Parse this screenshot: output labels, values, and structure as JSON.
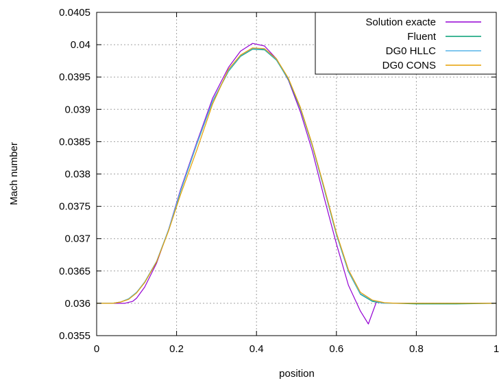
{
  "chart_data": {
    "type": "line",
    "title": "",
    "xlabel": "position",
    "ylabel": "Mach number",
    "xlim": [
      0,
      1
    ],
    "ylim": [
      0.0355,
      0.0405
    ],
    "x_ticks": [
      0,
      0.2,
      0.4,
      0.6,
      0.8,
      1
    ],
    "x_tick_labels": [
      "0",
      "0.2",
      "0.4",
      "0.6",
      "0.8",
      "1"
    ],
    "y_ticks": [
      0.0355,
      0.036,
      0.0365,
      0.037,
      0.0375,
      0.038,
      0.0385,
      0.039,
      0.0395,
      0.04,
      0.0405
    ],
    "y_tick_labels": [
      "0.0355",
      "0.036",
      "0.0365",
      "0.037",
      "0.0375",
      "0.038",
      "0.0385",
      "0.039",
      "0.0395",
      "0.04",
      "0.0405"
    ],
    "grid": true,
    "legend_position": "top-right",
    "series": [
      {
        "name": "Solution exacte",
        "color": "#9400d3",
        "x": [
          0,
          0.04,
          0.07,
          0.09,
          0.1,
          0.12,
          0.15,
          0.18,
          0.21,
          0.25,
          0.29,
          0.33,
          0.36,
          0.39,
          0.42,
          0.45,
          0.48,
          0.51,
          0.54,
          0.57,
          0.6,
          0.63,
          0.66,
          0.68,
          0.7,
          0.72,
          0.75,
          0.85,
          0.9,
          1
        ],
        "y": [
          0.036,
          0.036,
          0.036,
          0.03603,
          0.03608,
          0.03625,
          0.03662,
          0.03714,
          0.03776,
          0.03848,
          0.03917,
          0.03965,
          0.0399,
          0.04002,
          0.03998,
          0.03978,
          0.03945,
          0.03896,
          0.03835,
          0.03762,
          0.03692,
          0.03628,
          0.03588,
          0.03568,
          0.03602,
          0.036,
          0.036,
          0.036,
          0.036,
          0.036
        ]
      },
      {
        "name": "Fluent",
        "color": "#009e73",
        "x": [
          0,
          0.04,
          0.06,
          0.08,
          0.1,
          0.12,
          0.15,
          0.18,
          0.21,
          0.25,
          0.29,
          0.33,
          0.36,
          0.39,
          0.42,
          0.45,
          0.48,
          0.51,
          0.54,
          0.57,
          0.6,
          0.63,
          0.66,
          0.69,
          0.72,
          0.75,
          0.8,
          0.85,
          0.9,
          1
        ],
        "y": [
          0.036,
          0.036,
          0.03602,
          0.03607,
          0.03617,
          0.03632,
          0.03664,
          0.03713,
          0.03773,
          0.03845,
          0.03912,
          0.03959,
          0.03982,
          0.03993,
          0.03992,
          0.03976,
          0.03946,
          0.03901,
          0.03843,
          0.03775,
          0.03706,
          0.03649,
          0.03614,
          0.03603,
          0.036,
          0.036,
          0.03599,
          0.03599,
          0.03599,
          0.036
        ]
      },
      {
        "name": "DG0 HLLC",
        "color": "#56b4e9",
        "x": [
          0,
          0.04,
          0.06,
          0.08,
          0.1,
          0.12,
          0.15,
          0.18,
          0.21,
          0.25,
          0.29,
          0.33,
          0.36,
          0.39,
          0.42,
          0.45,
          0.48,
          0.51,
          0.54,
          0.57,
          0.6,
          0.63,
          0.66,
          0.69,
          0.72,
          0.75,
          0.8,
          0.85,
          0.9,
          1
        ],
        "y": [
          0.036,
          0.036,
          0.03602,
          0.03607,
          0.03617,
          0.03633,
          0.03665,
          0.03714,
          0.03774,
          0.03846,
          0.03913,
          0.0396,
          0.03983,
          0.03994,
          0.03993,
          0.03977,
          0.03947,
          0.03902,
          0.03844,
          0.03776,
          0.03707,
          0.0365,
          0.03615,
          0.03604,
          0.036,
          0.036,
          0.036,
          0.036,
          0.036,
          0.036
        ]
      },
      {
        "name": "DG0 CONS",
        "color": "#e69f00",
        "x": [
          0,
          0.04,
          0.06,
          0.08,
          0.1,
          0.12,
          0.15,
          0.18,
          0.21,
          0.25,
          0.29,
          0.33,
          0.36,
          0.39,
          0.42,
          0.45,
          0.48,
          0.51,
          0.54,
          0.57,
          0.6,
          0.63,
          0.66,
          0.69,
          0.72,
          0.75,
          0.8,
          0.85,
          0.9,
          1
        ],
        "y": [
          0.036,
          0.036,
          0.03602,
          0.03606,
          0.03616,
          0.03632,
          0.03664,
          0.03712,
          0.03768,
          0.03836,
          0.03908,
          0.03962,
          0.03984,
          0.03995,
          0.03994,
          0.03978,
          0.03948,
          0.03903,
          0.03845,
          0.03778,
          0.03709,
          0.03652,
          0.03617,
          0.03605,
          0.03601,
          0.036,
          0.036,
          0.036,
          0.036,
          0.036
        ]
      }
    ]
  }
}
